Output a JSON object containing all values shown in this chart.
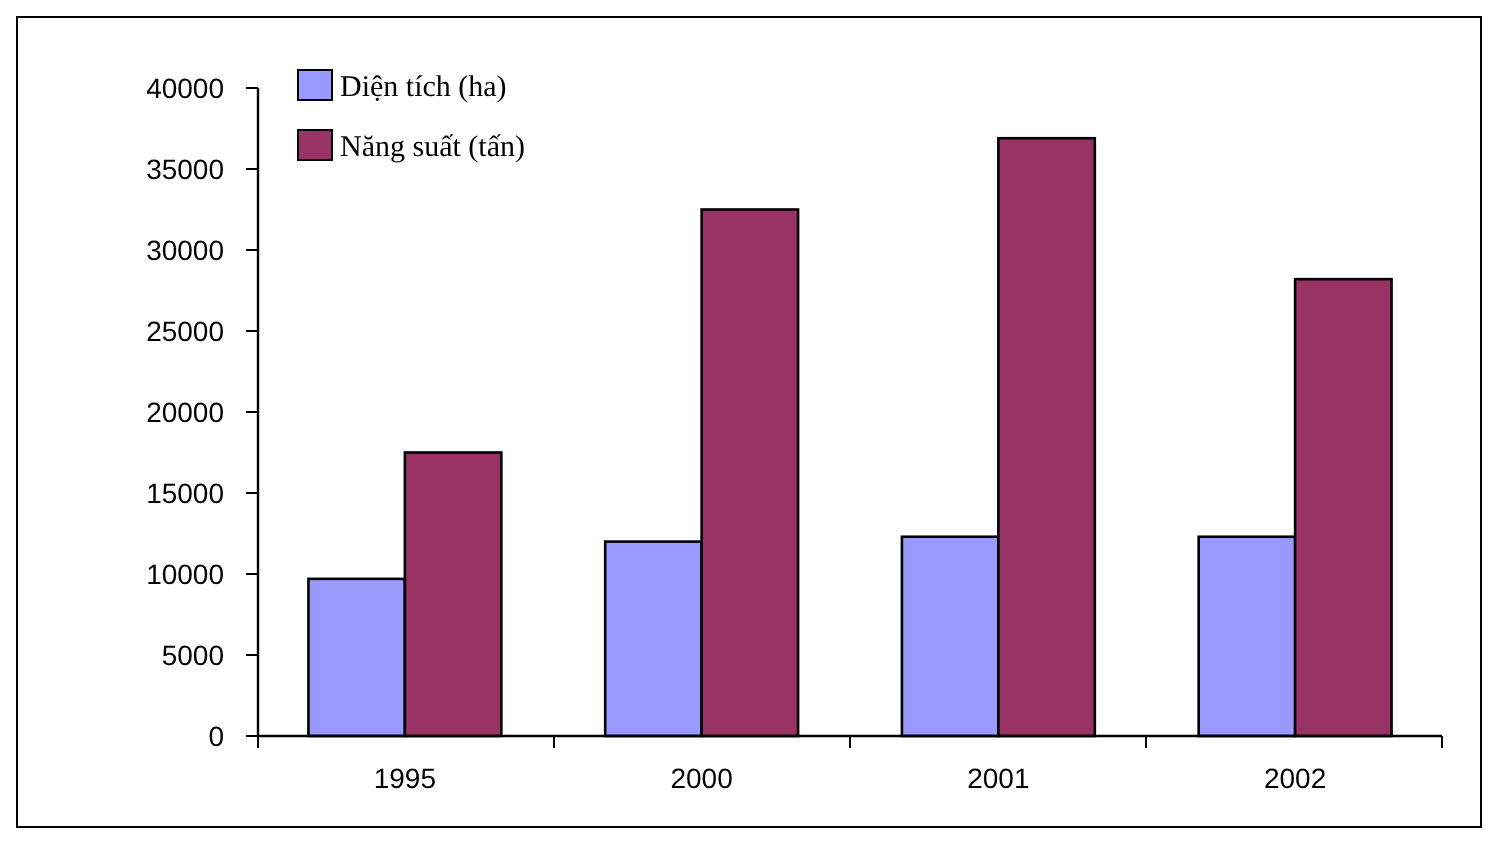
{
  "chart_data": {
    "type": "bar",
    "categories": [
      "1995",
      "2000",
      "2001",
      "2002"
    ],
    "series": [
      {
        "name": "Diện tích (ha)",
        "color": "#9999ff",
        "values": [
          9700,
          12000,
          12300,
          12300
        ]
      },
      {
        "name": "Năng suất (tấn)",
        "color": "#993366",
        "values": [
          17500,
          32500,
          36900,
          28200
        ]
      }
    ],
    "ylim": [
      0,
      40000
    ],
    "yticks": [
      0,
      5000,
      10000,
      15000,
      20000,
      25000,
      30000,
      35000,
      40000
    ],
    "grid": false,
    "legend": "top left"
  }
}
